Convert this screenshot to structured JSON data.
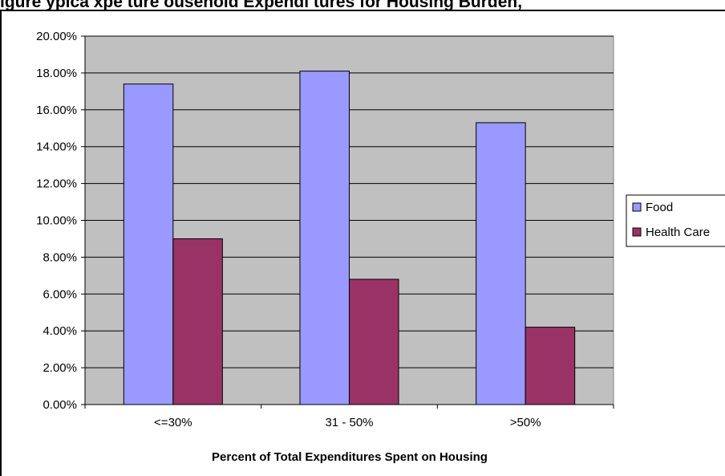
{
  "chart_data": {
    "type": "bar",
    "title": "igure ypica xpe ture ousehold Expendi tures for Housing Burden,",
    "xlabel": "Percent of Total Expenditures Spent on Housing",
    "ylabel": "",
    "categories": [
      "<=30%",
      "31 - 50%",
      ">50%"
    ],
    "series": [
      {
        "name": "Food",
        "values": [
          17.4,
          18.1,
          15.3
        ],
        "color": "#9999ff"
      },
      {
        "name": "Health Care",
        "values": [
          9.0,
          6.8,
          4.2
        ],
        "color": "#993366"
      }
    ],
    "ylim": [
      0,
      20
    ],
    "yticks": [
      0,
      2,
      4,
      6,
      8,
      10,
      12,
      14,
      16,
      18,
      20
    ],
    "ytick_labels": [
      "0.00%",
      "2.00%",
      "4.00%",
      "6.00%",
      "8.00%",
      "10.00%",
      "12.00%",
      "14.00%",
      "16.00%",
      "18.00%",
      "20.00%"
    ],
    "grid": true,
    "legend_position": "right",
    "plot_background": "#c0c0c0"
  }
}
